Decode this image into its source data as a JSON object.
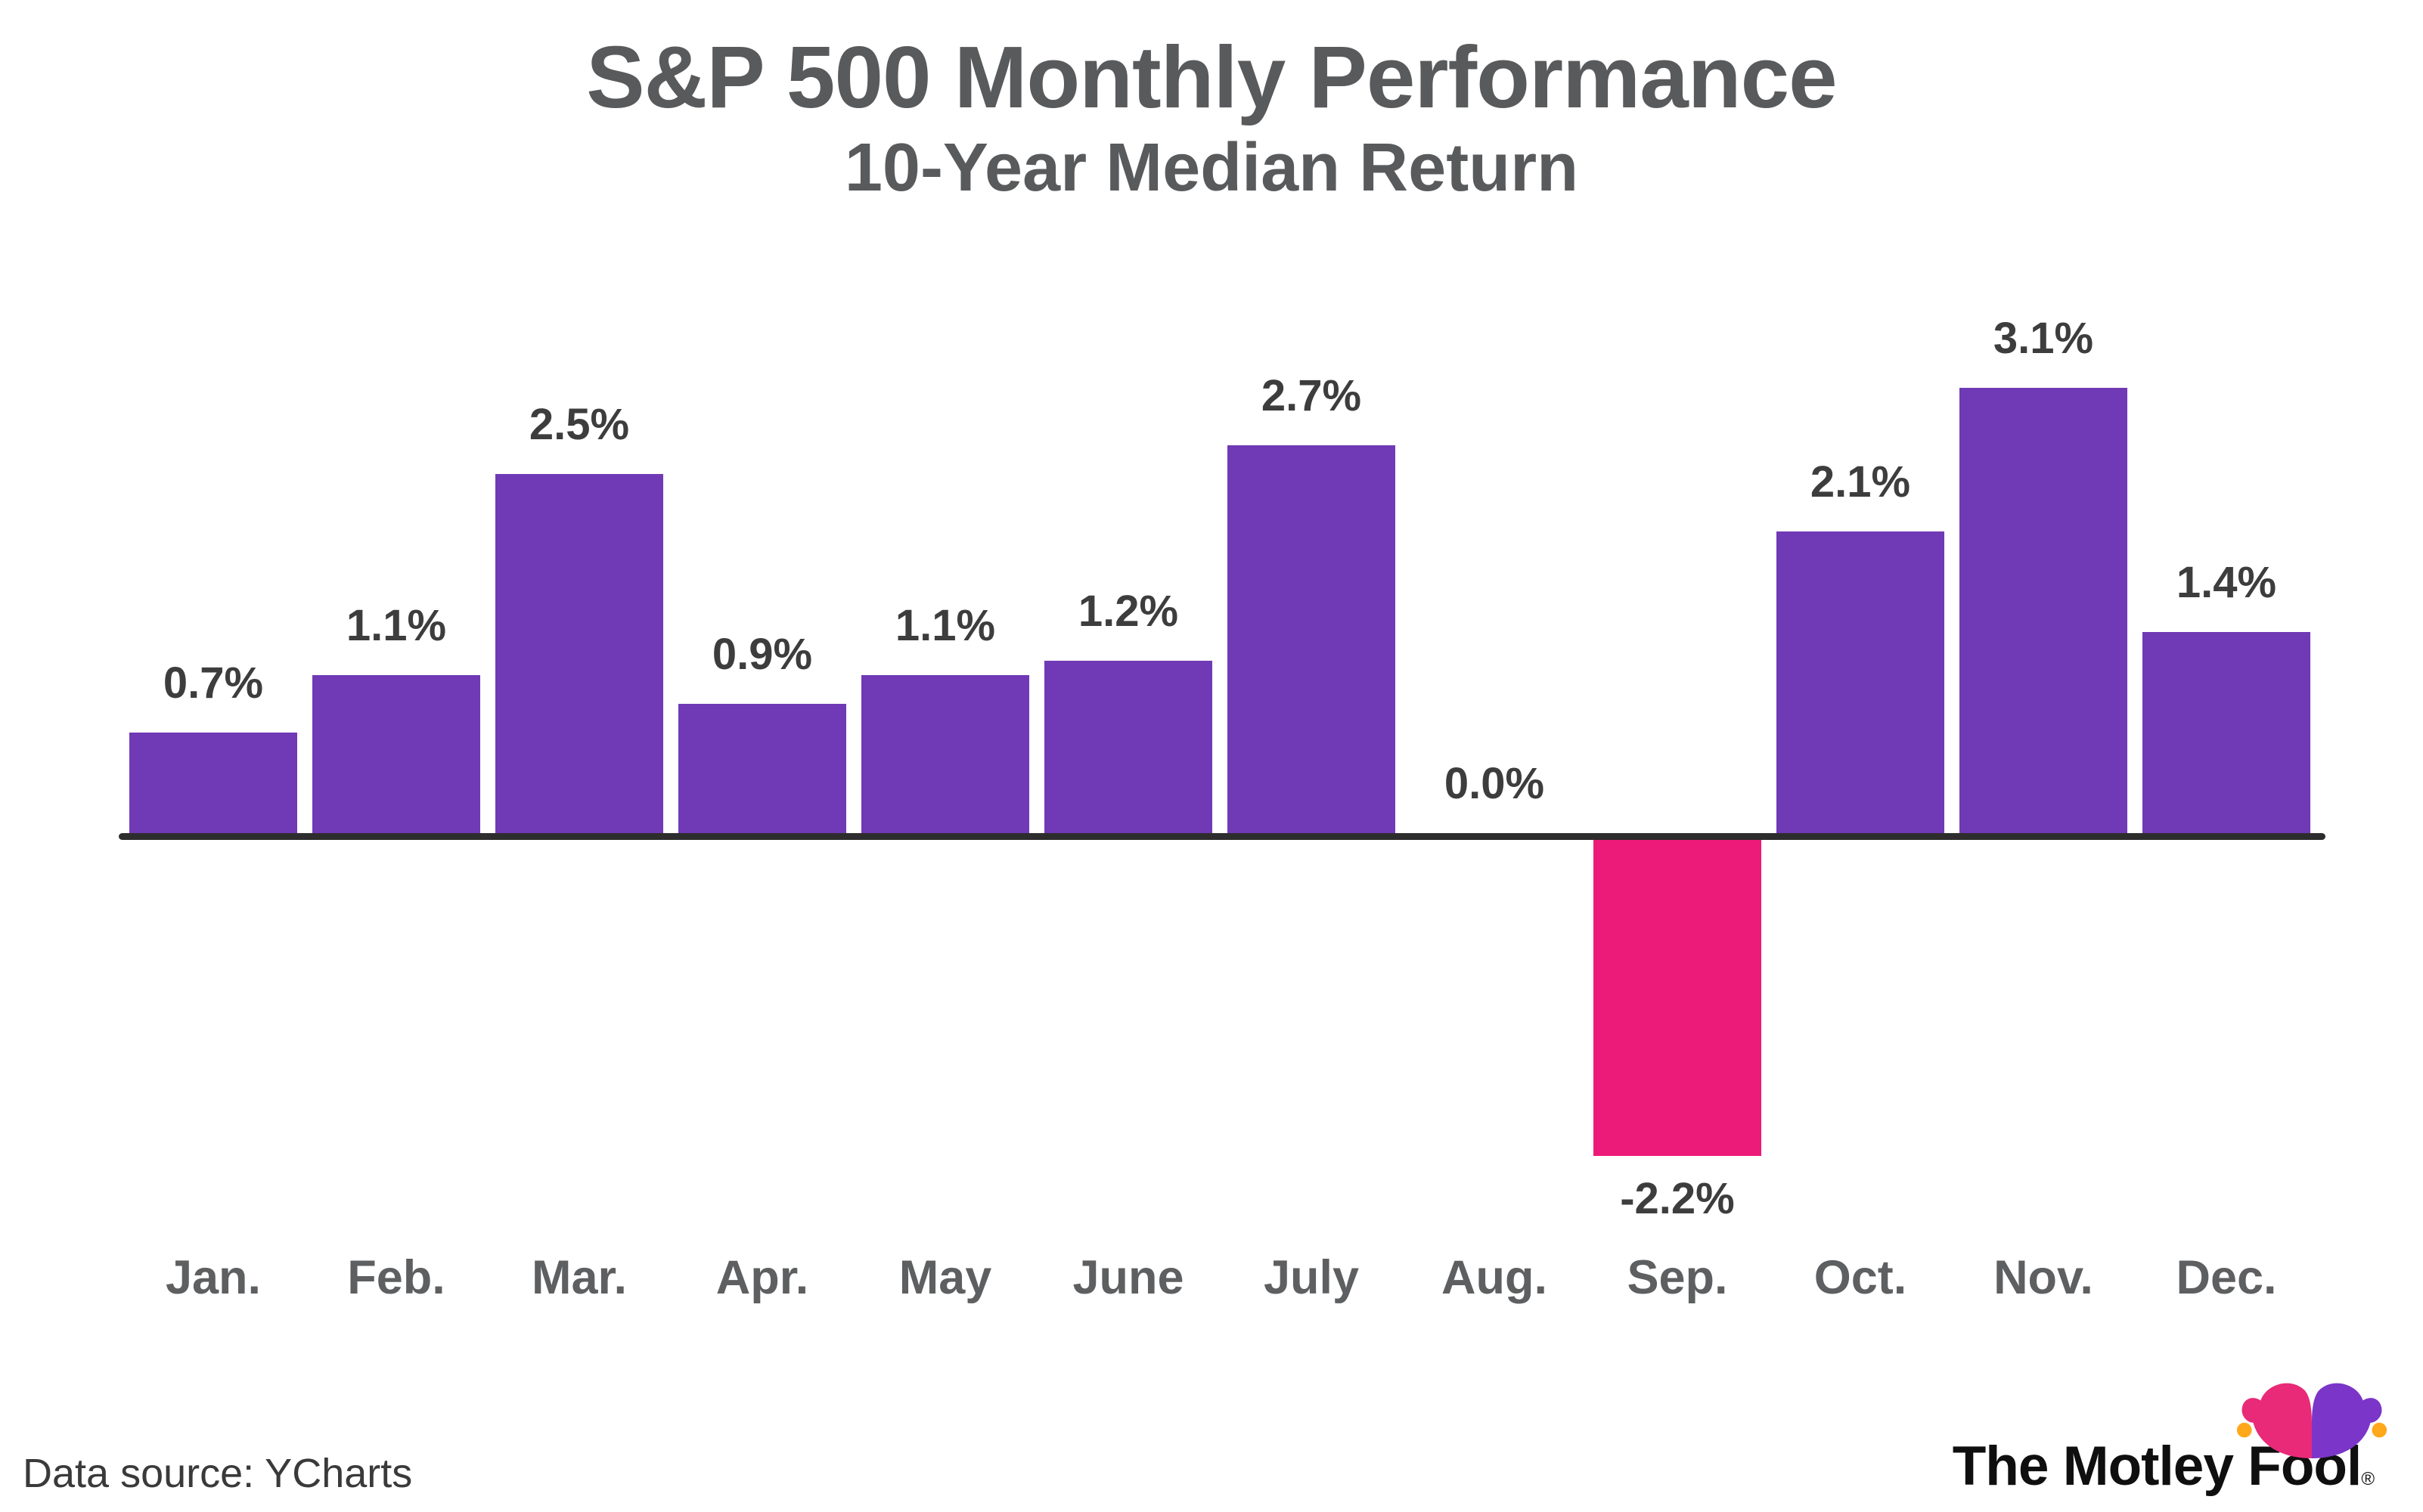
{
  "header": {
    "title": "S&P 500 Monthly Performance",
    "subtitle": "10-Year Median Return"
  },
  "footer": {
    "source": "Data source: YCharts"
  },
  "logo": {
    "text": "The Motley Fool",
    "registered": "®"
  },
  "colors": {
    "positive_bar": "#7039B5",
    "negative_bar": "#EC1A78",
    "axis": "#2D2D2D",
    "title_text": "#595A5C",
    "value_label": "#3D3D3D",
    "month_label": "#5E5F61",
    "source_text": "#3A3A3A",
    "logo_text": "#0F0F0F",
    "logo_hat_pink": "#E82A78",
    "logo_hat_purple": "#7B35C8",
    "logo_hat_orange": "#FFA81C"
  },
  "chart_data": {
    "type": "bar",
    "title": "S&P 500 Monthly Performance",
    "subtitle": "10-Year Median Return",
    "categories": [
      "Jan.",
      "Feb.",
      "Mar.",
      "Apr.",
      "May",
      "June",
      "July",
      "Aug.",
      "Sep.",
      "Oct.",
      "Nov.",
      "Dec."
    ],
    "values": [
      0.7,
      1.1,
      2.5,
      0.9,
      1.1,
      1.2,
      2.7,
      0.0,
      -2.2,
      2.1,
      3.1,
      1.4
    ],
    "labels": [
      "0.7%",
      "1.1%",
      "2.5%",
      "0.9%",
      "1.1%",
      "1.2%",
      "2.7%",
      "0.0%",
      "-2.2%",
      "2.1%",
      "3.1%",
      "1.4%"
    ],
    "unit": "%",
    "xlabel": "",
    "ylabel": "",
    "ylim": [
      -2.6,
      3.4
    ],
    "grid": false,
    "legend": false,
    "value_labels_shown": true,
    "baseline": 0
  }
}
